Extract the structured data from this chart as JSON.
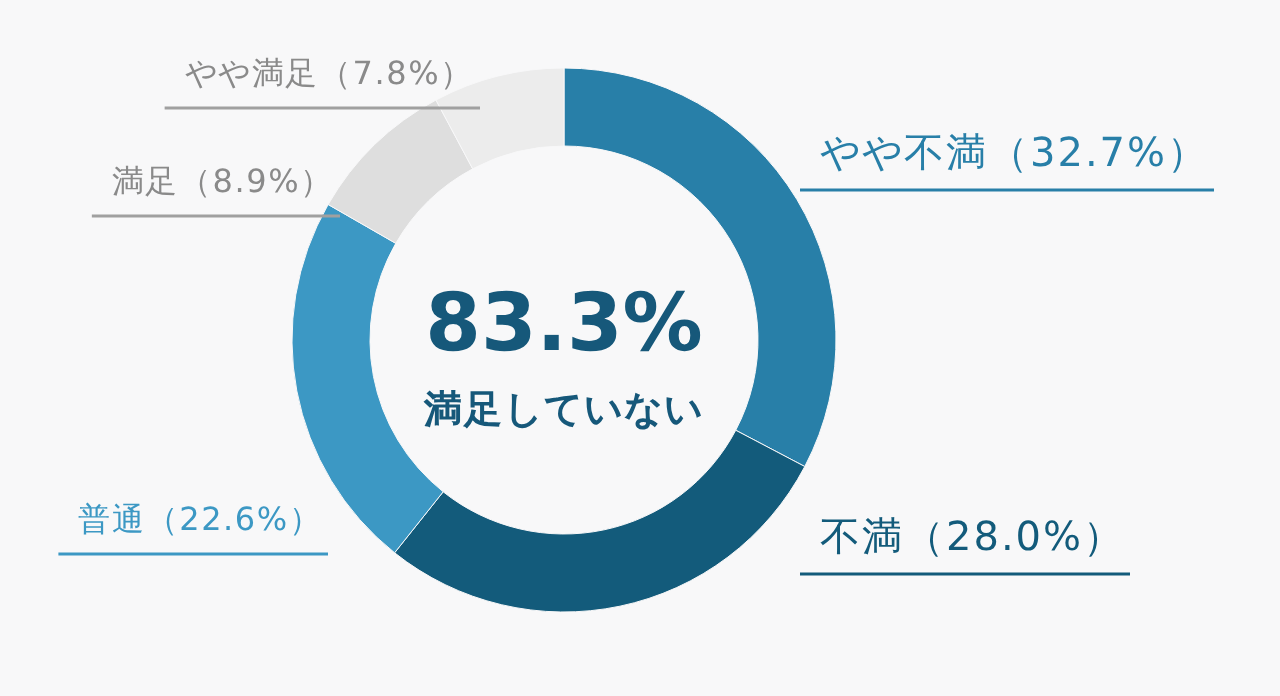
{
  "chart_data": {
    "type": "donut",
    "categories": [
      "やや不満",
      "不満",
      "普通",
      "満足",
      "やや満足"
    ],
    "values": [
      32.7,
      28.0,
      22.6,
      8.9,
      7.8
    ],
    "colors": [
      "#287fa8",
      "#135b7b",
      "#3c98c4",
      "#dedede",
      "#ececec"
    ],
    "value_labels": [
      "（32.7%）",
      "（28.0%）",
      "（22.6%）",
      "（8.9%）",
      "（7.8%）"
    ],
    "annotations": [
      "83.3%",
      "満足していない"
    ]
  }
}
